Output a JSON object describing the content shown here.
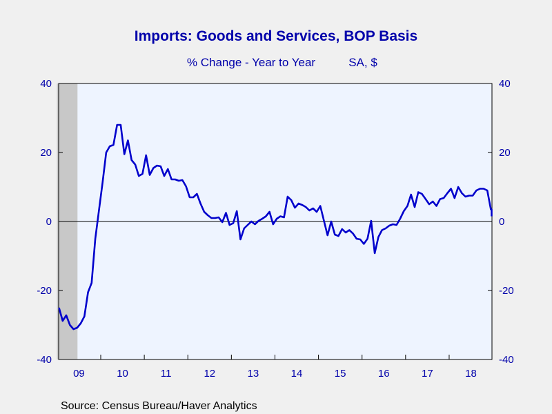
{
  "chart_data": {
    "type": "line",
    "title": "Imports: Goods and Services, BOP Basis",
    "subtitle_left": "% Change - Year to Year",
    "subtitle_right": "SA, $",
    "source": "Source:  Census Bureau/Haver Analytics",
    "ylim": [
      -40,
      40
    ],
    "y_ticks": [
      40,
      20,
      0,
      -20,
      -40
    ],
    "y_tick_labels": [
      "40",
      "20",
      "0",
      "-20",
      "-40"
    ],
    "x_labels": [
      "09",
      "10",
      "11",
      "12",
      "13",
      "14",
      "15",
      "16",
      "17",
      "18"
    ],
    "x_start": "2009-01",
    "x_end": "2018-11",
    "recession": {
      "start": "2009-01",
      "end": "2009-06"
    },
    "grid": false,
    "zero_line": true,
    "colors": {
      "series": "#0000cc",
      "plot_bg": "#eef4ff",
      "recession": "#c8c8c8",
      "text": "#0000aa",
      "page_bg": "#f0f0f0"
    },
    "series": [
      {
        "months": [
          "2009-01",
          "2009-02",
          "2009-03",
          "2009-04",
          "2009-05",
          "2009-06",
          "2009-07",
          "2009-08",
          "2009-09",
          "2009-10",
          "2009-11",
          "2009-12",
          "2010-01",
          "2010-02",
          "2010-03",
          "2010-04",
          "2010-05",
          "2010-06",
          "2010-07",
          "2010-08",
          "2010-09",
          "2010-10",
          "2010-11",
          "2010-12",
          "2011-01",
          "2011-02",
          "2011-03",
          "2011-04",
          "2011-05",
          "2011-06",
          "2011-07",
          "2011-08",
          "2011-09",
          "2011-10",
          "2011-11",
          "2011-12",
          "2012-01",
          "2012-02",
          "2012-03",
          "2012-04",
          "2012-05",
          "2012-06",
          "2012-07",
          "2012-08",
          "2012-09",
          "2012-10",
          "2012-11",
          "2012-12",
          "2013-01",
          "2013-02",
          "2013-03",
          "2013-04",
          "2013-05",
          "2013-06",
          "2013-07",
          "2013-08",
          "2013-09",
          "2013-10",
          "2013-11",
          "2013-12",
          "2014-01",
          "2014-02",
          "2014-03",
          "2014-04",
          "2014-05",
          "2014-06",
          "2014-07",
          "2014-08",
          "2014-09",
          "2014-10",
          "2014-11",
          "2014-12",
          "2015-01",
          "2015-02",
          "2015-03",
          "2015-04",
          "2015-05",
          "2015-06",
          "2015-07",
          "2015-08",
          "2015-09",
          "2015-10",
          "2015-11",
          "2015-12",
          "2016-01",
          "2016-02",
          "2016-03",
          "2016-04",
          "2016-05",
          "2016-06",
          "2016-07",
          "2016-08",
          "2016-09",
          "2016-10",
          "2016-11",
          "2016-12",
          "2017-01",
          "2017-02",
          "2017-03",
          "2017-04",
          "2017-05",
          "2017-06",
          "2017-07",
          "2017-08",
          "2017-09",
          "2017-10",
          "2017-11",
          "2017-12",
          "2018-01",
          "2018-02",
          "2018-03",
          "2018-04",
          "2018-05",
          "2018-06",
          "2018-07",
          "2018-08",
          "2018-09",
          "2018-10",
          "2018-11"
        ],
        "values": [
          -25.0,
          -28.8,
          -27.2,
          -30.0,
          -31.2,
          -30.8,
          -29.5,
          -27.5,
          -20.5,
          -17.8,
          -5.0,
          3.2,
          11.2,
          20.0,
          21.8,
          22.2,
          28.0,
          28.0,
          19.5,
          23.5,
          17.8,
          16.5,
          13.2,
          13.8,
          19.2,
          13.5,
          15.5,
          16.2,
          16.0,
          13.2,
          15.2,
          12.2,
          12.2,
          11.8,
          12.0,
          10.2,
          7.0,
          7.0,
          8.0,
          5.2,
          2.8,
          1.8,
          1.0,
          1.0,
          1.2,
          -0.2,
          2.5,
          -1.0,
          -0.5,
          3.0,
          -5.2,
          -2.0,
          -1.0,
          0.0,
          -0.8,
          0.2,
          0.8,
          1.5,
          2.8,
          -0.8,
          0.8,
          1.5,
          1.2,
          7.2,
          6.2,
          4.0,
          5.2,
          4.8,
          4.2,
          3.2,
          3.8,
          2.8,
          4.5,
          0.2,
          -4.0,
          0.0,
          -3.8,
          -4.2,
          -2.2,
          -3.2,
          -2.5,
          -3.5,
          -5.0,
          -5.2,
          -6.5,
          -5.0,
          0.2,
          -9.2,
          -4.5,
          -2.5,
          -2.0,
          -1.2,
          -0.8,
          -1.0,
          0.8,
          3.0,
          4.5,
          7.8,
          4.2,
          8.5,
          8.0,
          6.5,
          5.0,
          5.8,
          4.5,
          6.5,
          6.8,
          8.2,
          9.5,
          6.8,
          10.0,
          8.2,
          7.2,
          7.5,
          7.5,
          9.0,
          9.5,
          9.5,
          9.0
        ]
      }
    ],
    "series_tail": {
      "months": [
        "2018-12",
        "2019-01",
        "2019-02"
      ],
      "values": [
        3.5,
        3.5,
        1.5
      ]
    }
  }
}
